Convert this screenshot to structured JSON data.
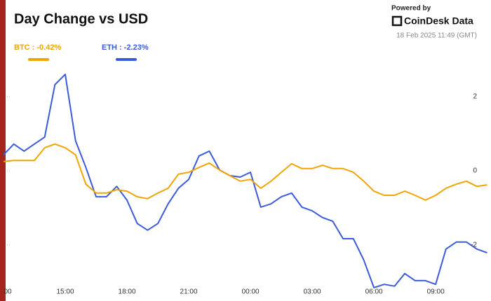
{
  "header": {
    "powered": "Powered by",
    "brand": "CoinDesk Data",
    "timestamp": "18 Feb 2025 11:49 (GMT)"
  },
  "chart_data": {
    "type": "line",
    "title": "Day Change vs USD",
    "categories": [
      "00",
      null,
      null,
      null,
      null,
      null,
      "15:00",
      null,
      null,
      null,
      null,
      null,
      "18:00",
      null,
      null,
      null,
      null,
      null,
      "21:00",
      null,
      null,
      null,
      null,
      null,
      "00:00",
      null,
      null,
      null,
      null,
      null,
      "03:00",
      null,
      null,
      null,
      null,
      null,
      "06:00",
      null,
      null,
      null,
      null,
      null,
      "09:00",
      null,
      null,
      null,
      null,
      null
    ],
    "series": [
      {
        "name": "BTC : -0.42%",
        "color": "#f0a500",
        "values": [
          0.25,
          0.28,
          0.28,
          0.28,
          0.62,
          0.72,
          0.62,
          0.43,
          -0.36,
          -0.6,
          -0.6,
          -0.51,
          -0.55,
          -0.7,
          -0.75,
          -0.6,
          -0.47,
          -0.09,
          -0.04,
          0.09,
          0.21,
          0.02,
          -0.13,
          -0.28,
          -0.23,
          -0.47,
          -0.28,
          -0.04,
          0.19,
          0.06,
          0.06,
          0.15,
          0.06,
          0.06,
          -0.04,
          -0.28,
          -0.55,
          -0.66,
          -0.66,
          -0.55,
          -0.66,
          -0.79,
          -0.66,
          -0.47,
          -0.36,
          -0.28,
          -0.42,
          -0.38
        ]
      },
      {
        "name": "ETH : -2.23%",
        "color": "#3b5bdb",
        "values": [
          0.43,
          0.72,
          0.53,
          0.72,
          0.91,
          2.32,
          2.6,
          0.81,
          0.09,
          -0.7,
          -0.7,
          -0.42,
          -0.79,
          -1.42,
          -1.6,
          -1.42,
          -0.89,
          -0.47,
          -0.23,
          0.4,
          0.53,
          0.02,
          -0.13,
          -0.17,
          -0.04,
          -0.98,
          -0.89,
          -0.7,
          -0.6,
          -0.98,
          -1.08,
          -1.26,
          -1.36,
          -1.83,
          -1.83,
          -2.4,
          -3.15,
          -3.06,
          -3.11,
          -2.77,
          -2.96,
          -2.96,
          -3.06,
          -2.11,
          -1.92,
          -1.92,
          -2.11,
          -2.21
        ]
      }
    ],
    "ylim": [
      -3.2,
      3
    ],
    "yticks": [
      -2,
      0,
      2
    ]
  }
}
